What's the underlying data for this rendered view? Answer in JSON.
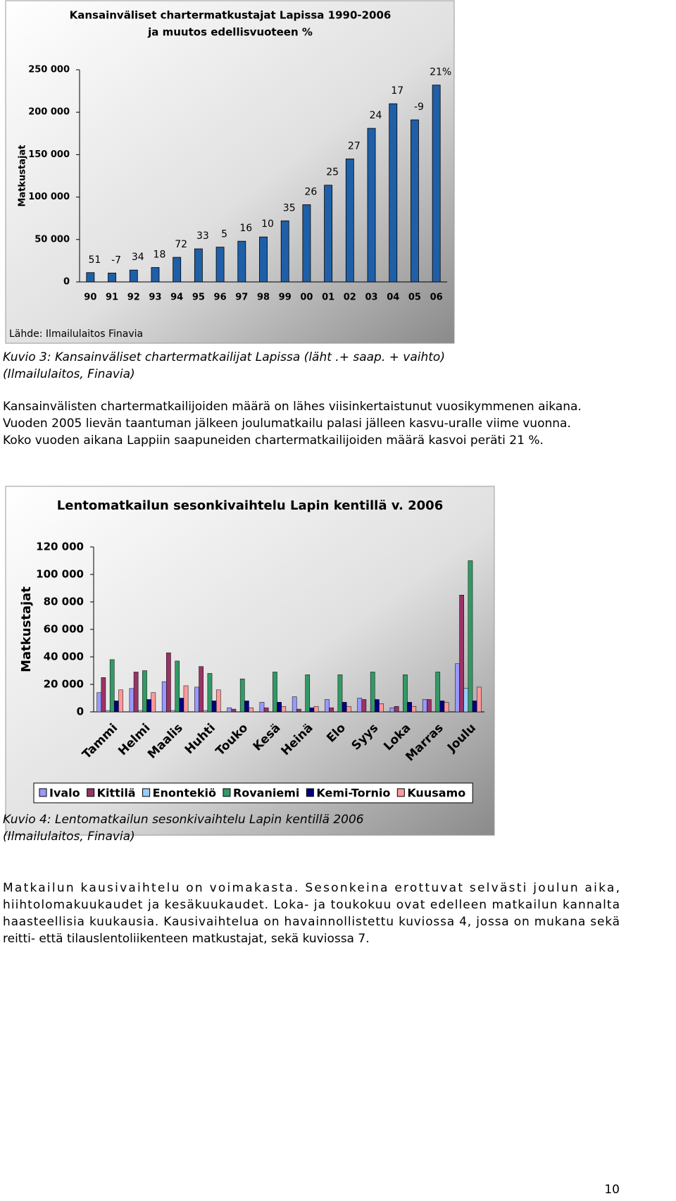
{
  "chart_data": [
    {
      "type": "bar",
      "title": [
        "Kansainväliset chartermatkustajat Lapissa 1990-2006",
        "ja muutos edellisvuoteen %"
      ],
      "y_label": "Matkustajat",
      "source": "Lähde: Ilmailulaitos Finavia",
      "categories": [
        "90",
        "91",
        "92",
        "93",
        "94",
        "95",
        "96",
        "97",
        "98",
        "99",
        "00",
        "01",
        "02",
        "03",
        "04",
        "05",
        "06"
      ],
      "values": [
        11000,
        10500,
        14000,
        17000,
        29000,
        39000,
        41000,
        48000,
        53000,
        72000,
        91000,
        114000,
        145000,
        181000,
        210000,
        191000,
        232000
      ],
      "change_labels": [
        "51",
        "-7",
        "34",
        "18",
        "72",
        "33",
        "5",
        "16",
        "10",
        "35",
        "26",
        "25",
        "27",
        "24",
        "17",
        "-9",
        "21%"
      ],
      "color": "#1f5fa8",
      "ylim": [
        0,
        250000
      ],
      "yticks": [
        0,
        {
          "value": 50000,
          "label": "50 000"
        },
        {
          "value": 100000,
          "label": "100 000"
        },
        {
          "value": 150000,
          "label": "150 000"
        },
        {
          "value": 200000,
          "label": "200 000"
        },
        {
          "value": 250000,
          "label": "250 000"
        }
      ],
      "grid": false
    },
    {
      "type": "bar",
      "title": [
        "Lentomatkailun sesonkivaihtelu Lapin kentillä v. 2006"
      ],
      "y_label": "Matkustajat",
      "categories": [
        "Tammi",
        "Helmi",
        "Maalis",
        "Huhti",
        "Touko",
        "Kesä",
        "Heinä",
        "Elo",
        "Syys",
        "Loka",
        "Marras",
        "Joulu"
      ],
      "series": [
        {
          "name": "Ivalo",
          "color": "#9999ff",
          "values": [
            14000,
            17000,
            22000,
            18000,
            3000,
            7000,
            11000,
            9000,
            10000,
            3000,
            9000,
            35000
          ]
        },
        {
          "name": "Kittilä",
          "color": "#993366",
          "values": [
            25000,
            29000,
            43000,
            33000,
            2000,
            3000,
            2000,
            3000,
            9000,
            4000,
            9000,
            85000
          ]
        },
        {
          "name": "Enontekiö",
          "color": "#99ccff",
          "values": [
            1000,
            1000,
            1000,
            1000,
            0,
            0,
            0,
            0,
            0,
            0,
            0,
            17000
          ]
        },
        {
          "name": "Rovaniemi",
          "color": "#339966",
          "values": [
            38000,
            30000,
            37000,
            28000,
            24000,
            29000,
            27000,
            27000,
            29000,
            27000,
            29000,
            110000
          ]
        },
        {
          "name": "Kemi-Tornio",
          "color": "#000080",
          "values": [
            8000,
            9000,
            10000,
            8000,
            8000,
            7000,
            3000,
            7000,
            9000,
            7000,
            8000,
            8000
          ]
        },
        {
          "name": "Kuusamo",
          "color": "#ff9999",
          "values": [
            16000,
            14000,
            19000,
            16000,
            3000,
            4000,
            4000,
            4000,
            6000,
            4000,
            7000,
            18000
          ]
        }
      ],
      "ylim": [
        0,
        120000
      ],
      "yticks": [
        0,
        {
          "value": 20000,
          "label": "20 000"
        },
        {
          "value": 40000,
          "label": "40 000"
        },
        {
          "value": 60000,
          "label": "60 000"
        },
        {
          "value": 80000,
          "label": "80 000"
        },
        {
          "value": 100000,
          "label": "100 000"
        },
        {
          "value": 120000,
          "label": "120 000"
        }
      ],
      "grid": false,
      "legend": "bottom"
    }
  ],
  "document": {
    "caption1": [
      "Kuvio 3: Kansainväliset chartermatkailijat Lapissa (läht .+ saap. + vaihto)",
      "(Ilmailulaitos, Finavia)"
    ],
    "paragraph1": [
      "Kansainvälisten chartermatkailijoiden määrä on lähes viisinkertaistunut vuosikymmenen aikana.",
      "Vuoden 2005 lievän taantuman jälkeen joulumatkailu palasi jälleen kasvu-uralle viime vuonna.",
      "Koko vuoden aikana Lappiin saapuneiden chartermatkailijoiden määrä kasvoi peräti 21 %."
    ],
    "caption2": [
      "Kuvio 4: Lentomatkailun sesonkivaihtelu Lapin kentillä 2006",
      "(Ilmailulaitos, Finavia)"
    ],
    "paragraph2": [
      "Matkailun kausivaihtelu on voimakasta. Sesonkeina erottuvat selvästi joulun aika,",
      "hiihtolomakuukaudet ja kesäkuukaudet. Loka- ja toukokuu ovat edelleen matkailun kannalta",
      "haasteellisia kuukausia. Kausivaihtelua on havainnollistettu kuviossa 4, jossa on mukana sekä",
      "reitti- että tilauslentoliikenteen matkustajat, sekä kuviossa 7."
    ],
    "page_number": "10"
  }
}
